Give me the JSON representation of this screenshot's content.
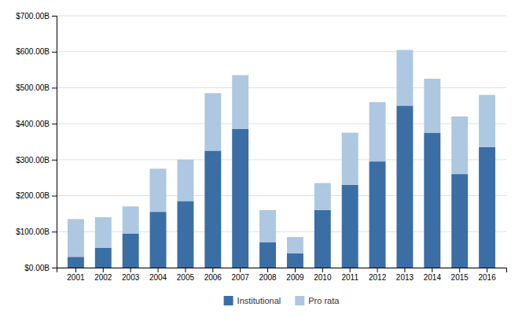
{
  "chart_data": {
    "type": "bar",
    "stacked": true,
    "categories": [
      "2001",
      "2002",
      "2003",
      "2004",
      "2005",
      "2006",
      "2007",
      "2008",
      "2009",
      "2010",
      "2011",
      "2012",
      "2013",
      "2014",
      "2015",
      "2016"
    ],
    "series": [
      {
        "name": "Institutional",
        "color": "#3a6ea5",
        "values": [
          30,
          55,
          95,
          155,
          185,
          325,
          385,
          70,
          40,
          160,
          230,
          295,
          450,
          375,
          260,
          335
        ]
      },
      {
        "name": "Pro rata",
        "color": "#adc8e0",
        "values": [
          105,
          85,
          75,
          120,
          115,
          160,
          150,
          90,
          45,
          75,
          145,
          165,
          155,
          150,
          160,
          145
        ]
      }
    ],
    "ylim": [
      0,
      700
    ],
    "yticks": [
      {
        "value": 0,
        "label": "$0.00B"
      },
      {
        "value": 100,
        "label": "$100.00B"
      },
      {
        "value": 200,
        "label": "$200.00B"
      },
      {
        "value": 300,
        "label": "$300.00B"
      },
      {
        "value": 400,
        "label": "$400.00B"
      },
      {
        "value": 500,
        "label": "$500.00B"
      },
      {
        "value": 600,
        "label": "$600.00B"
      },
      {
        "value": 700,
        "label": "$700.00B"
      }
    ],
    "grid": true,
    "legend": "bottom"
  }
}
